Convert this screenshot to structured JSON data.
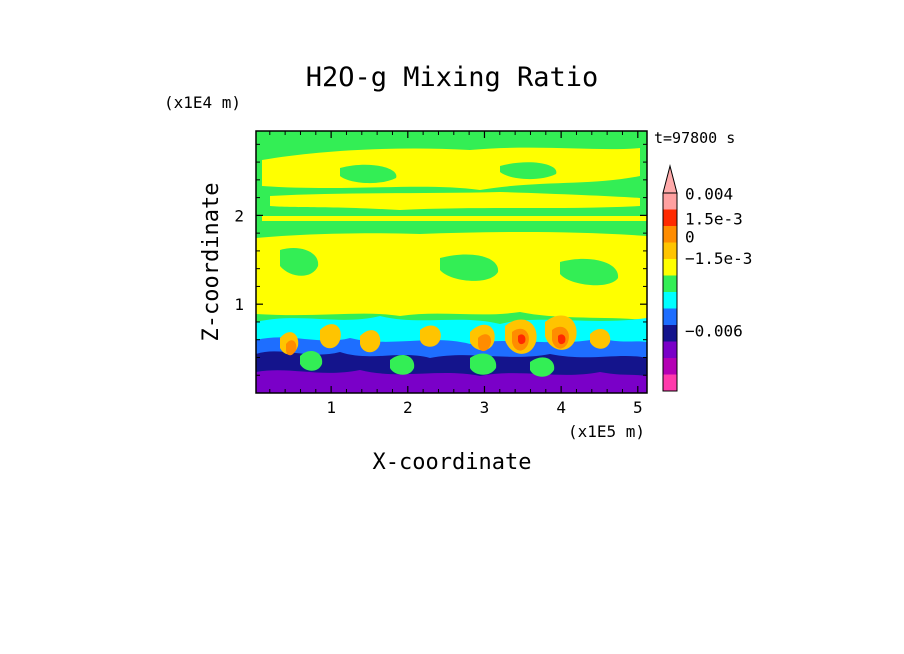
{
  "chart_data": {
    "type": "heatmap",
    "title": "H2O-g Mixing Ratio",
    "xlabel": "X-coordinate",
    "ylabel": "Z-coordinate",
    "x_scale_label": "(x1E5 m)",
    "y_scale_label": "(x1E4 m)",
    "time_label": "t=97800 s",
    "xlim": [
      0.02,
      5.12
    ],
    "ylim": [
      0.0,
      2.95
    ],
    "x_ticks": [
      {
        "value": 1,
        "label": "1"
      },
      {
        "value": 2,
        "label": "2"
      },
      {
        "value": 3,
        "label": "3"
      },
      {
        "value": 4,
        "label": "4"
      },
      {
        "value": 5,
        "label": "5"
      }
    ],
    "y_ticks": [
      {
        "value": 1,
        "label": "1"
      },
      {
        "value": 2,
        "label": "2"
      }
    ],
    "colorbar": {
      "levels": [
        "#ff3aac",
        "#b400b4",
        "#7a00c8",
        "#14148c",
        "#1e6eff",
        "#00ffff",
        "#33ee55",
        "#ffff00",
        "#ffc400",
        "#ff8c00",
        "#ff2a00",
        "#ffa0a0"
      ],
      "extend_top_color": "#ffaaaa",
      "labels": [
        {
          "text": "0.004",
          "level": 11.9
        },
        {
          "text": "1.5e-3",
          "level": 10.4
        },
        {
          "text": "0",
          "level": 9.3
        },
        {
          "text": "−1.5e-3",
          "level": 8.0
        },
        {
          "text": "−0.006",
          "level": 3.6
        }
      ]
    },
    "field_colors": {
      "purple": "#7a00c8",
      "navy": "#14148c",
      "blue": "#1e6eff",
      "cyan": "#00ffff",
      "green": "#33ee55",
      "yellow": "#ffff00",
      "gold": "#ffc400",
      "orange": "#ff8c00",
      "red": "#ff2a00"
    }
  }
}
